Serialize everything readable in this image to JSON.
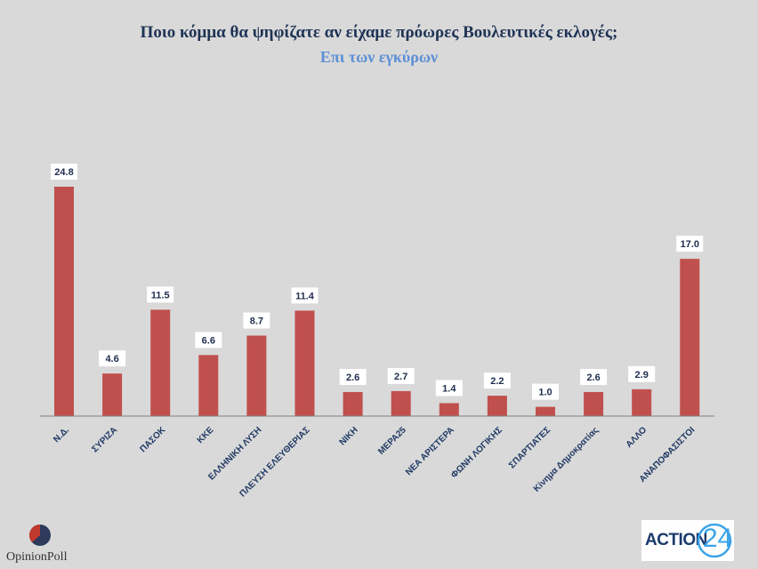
{
  "chart_data": {
    "type": "bar",
    "title": "Ποιο κόμμα θα ψηφίζατε αν είχαμε πρόωρες Βουλευτικές εκλογές;",
    "subtitle": "Επι των εγκύρων",
    "categories": [
      "Ν.Δ.",
      "ΣΥΡΙΖΑ",
      "ΠΑΣΟΚ",
      "ΚΚΕ",
      "ΕΛΛΗΝΙΚΗ ΛΥΣΗ",
      "ΠΛΕΥΣΗ ΕΛΕΥΘΕΡΙΑΣ",
      "ΝΙΚΗ",
      "ΜΕΡΑ25",
      "ΝΕΑ ΑΡΙΣΤΕΡΑ",
      "ΦΩΝΗ ΛΟΓΙΚΗΣ",
      "ΣΠΑΡΤΙΑΤΕΣ",
      "Κίνημα Δημοκρατίας",
      "ΑΛΛΟ",
      "ΑΝΑΠΟΦΑΣΙΣΤΟΙ"
    ],
    "values": [
      24.8,
      4.6,
      11.5,
      6.6,
      8.7,
      11.4,
      2.6,
      2.7,
      1.4,
      2.2,
      1.0,
      2.6,
      2.9,
      17.0
    ],
    "value_labels": [
      "24.8",
      "4.6",
      "11.5",
      "6.6",
      "8.7",
      "11.4",
      "2.6",
      "2.7",
      "1.4",
      "2.2",
      "1.0",
      "2.6",
      "2.9",
      "17.0"
    ],
    "ylim": [
      0,
      27
    ],
    "xlabel": "",
    "ylabel": "",
    "grid": false,
    "bar_color": "#c0504d"
  },
  "logos": {
    "opinion_poll": "OpinionPoll",
    "action24_text": "ACTION",
    "action24_number": "24"
  }
}
